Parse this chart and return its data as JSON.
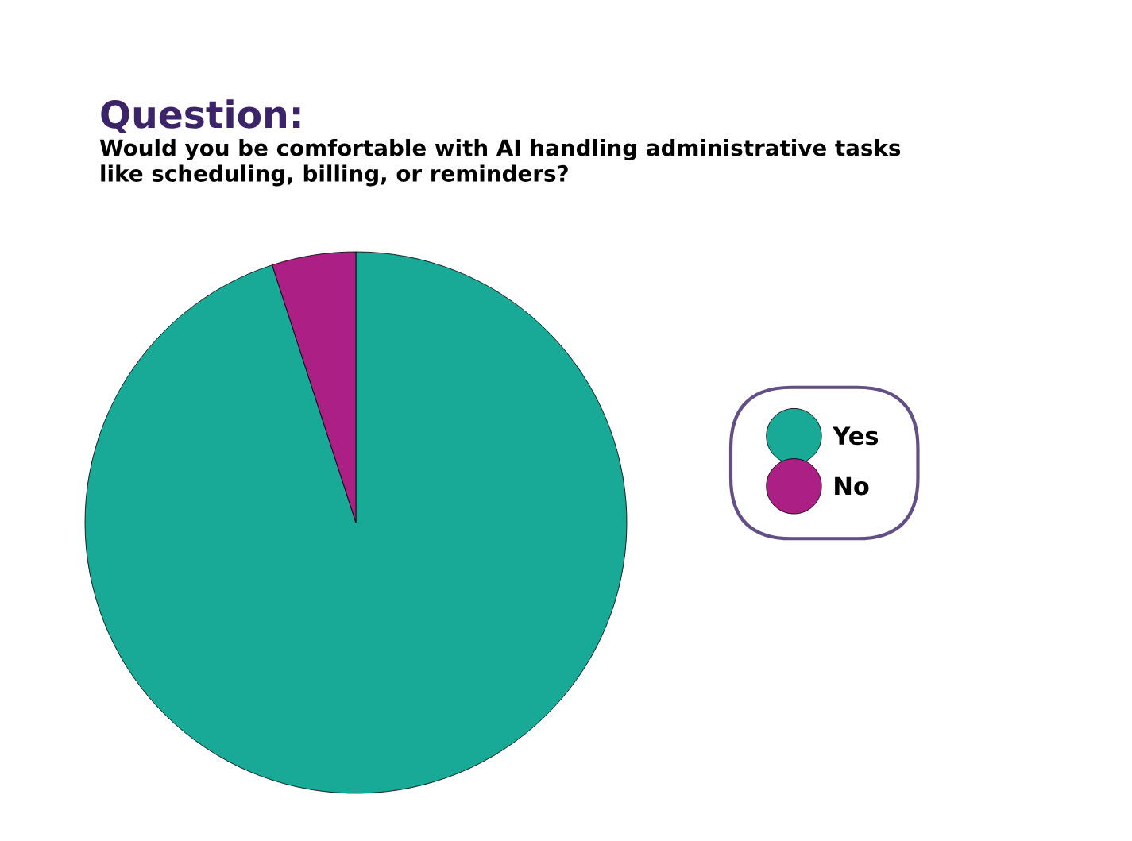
{
  "chart_data": {
    "type": "pie",
    "title": "Question:",
    "subtitle": "Would you be comfortable with AI handling administrative tasks\nlike scheduling, billing, or reminders?",
    "categories": [
      "Yes",
      "No"
    ],
    "values": [
      95,
      5
    ],
    "colors": [
      "#19a997",
      "#ac1f84"
    ],
    "legend": "right"
  }
}
